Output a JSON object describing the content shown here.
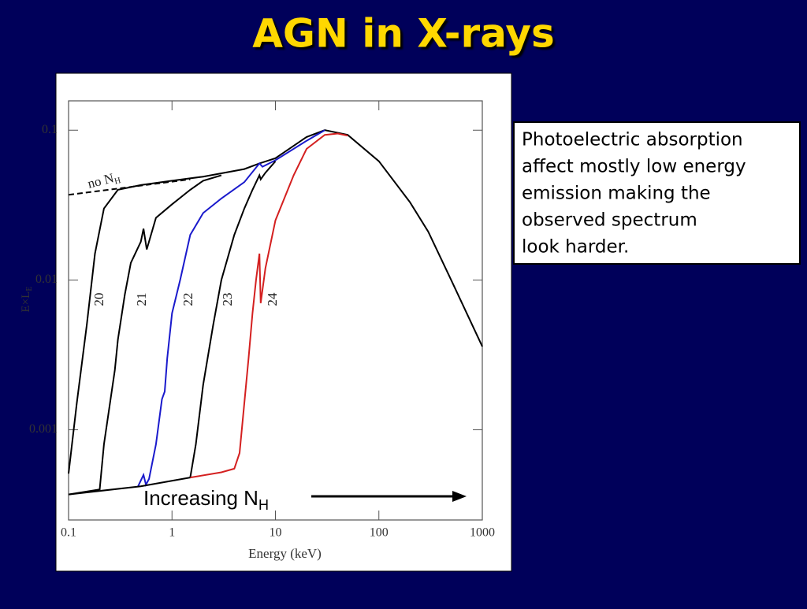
{
  "title": "AGN in X-rays",
  "chart_data": {
    "type": "line",
    "x_label": "Energy (keV)",
    "y_label": "E×L",
    "y_label_sub": "E",
    "xlog": true,
    "ylog": true,
    "xlim": [
      0.1,
      1000
    ],
    "ylim": [
      0.00025,
      0.157
    ],
    "xticks": [
      0.1,
      1,
      10,
      100,
      1000
    ],
    "yticks": [
      0.1,
      0.01,
      0.001
    ],
    "series": [
      {
        "name": "no N",
        "name_sub": "H",
        "color": "#000000",
        "dash": true,
        "x": [
          0.1,
          1.5
        ],
        "values": [
          0.037,
          0.047
        ]
      },
      {
        "name": "20",
        "color": "#000000",
        "x": [
          0.1,
          0.12,
          0.15,
          0.18,
          0.22,
          0.3,
          0.5,
          1,
          2,
          5,
          7,
          10,
          20,
          30,
          50,
          100,
          200,
          300,
          500,
          1000
        ],
        "values": [
          0.00051,
          0.0015,
          0.005,
          0.015,
          0.03,
          0.04,
          0.043,
          0.046,
          0.049,
          0.055,
          0.06,
          0.065,
          0.09,
          0.1,
          0.093,
          0.062,
          0.033,
          0.021,
          0.01,
          0.0036
        ]
      },
      {
        "name": "21",
        "color": "#000000",
        "x": [
          0.1,
          0.2,
          0.22,
          0.28,
          0.3,
          0.35,
          0.4,
          0.5,
          0.53,
          0.57,
          0.7,
          1,
          1.5,
          2,
          3
        ],
        "values": [
          0.00037,
          0.0004,
          0.0008,
          0.0025,
          0.004,
          0.008,
          0.013,
          0.018,
          0.022,
          0.016,
          0.026,
          0.032,
          0.04,
          0.046,
          0.05
        ]
      },
      {
        "name": "22",
        "color": "#1a1acc",
        "x": [
          0.47,
          0.53,
          0.56,
          0.6,
          0.7,
          0.8,
          0.85,
          0.9,
          1,
          1.2,
          1.5,
          2,
          3,
          5,
          7,
          7.5,
          10,
          20,
          30
        ],
        "values": [
          0.00042,
          0.0005,
          0.00043,
          0.00047,
          0.0008,
          0.0016,
          0.0018,
          0.003,
          0.006,
          0.01,
          0.02,
          0.028,
          0.035,
          0.045,
          0.06,
          0.057,
          0.063,
          0.085,
          0.1
        ]
      },
      {
        "name": "23",
        "color": "#000000",
        "x": [
          0.1,
          0.5,
          1.5,
          1.7,
          2,
          2.5,
          3,
          4,
          5,
          6,
          7,
          7.2,
          8,
          10
        ],
        "values": [
          0.00037,
          0.00042,
          0.00048,
          0.0008,
          0.002,
          0.005,
          0.01,
          0.02,
          0.03,
          0.04,
          0.05,
          0.047,
          0.052,
          0.062
        ]
      },
      {
        "name": "24",
        "color": "#d42020",
        "x": [
          1.5,
          3,
          4,
          4.5,
          5,
          5.5,
          6,
          6.5,
          7,
          7.2,
          8,
          10,
          15,
          20,
          30,
          40,
          50
        ],
        "values": [
          0.00048,
          0.00052,
          0.00055,
          0.0007,
          0.0015,
          0.003,
          0.006,
          0.01,
          0.015,
          0.007,
          0.012,
          0.025,
          0.05,
          0.075,
          0.093,
          0.095,
          0.092
        ]
      }
    ],
    "annotation": "Increasing N",
    "annotation_sub": "H"
  },
  "note": [
    "Photoelectric absorption",
    "affect mostly low energy",
    "emission making the",
    "observed spectrum",
    "look harder."
  ]
}
